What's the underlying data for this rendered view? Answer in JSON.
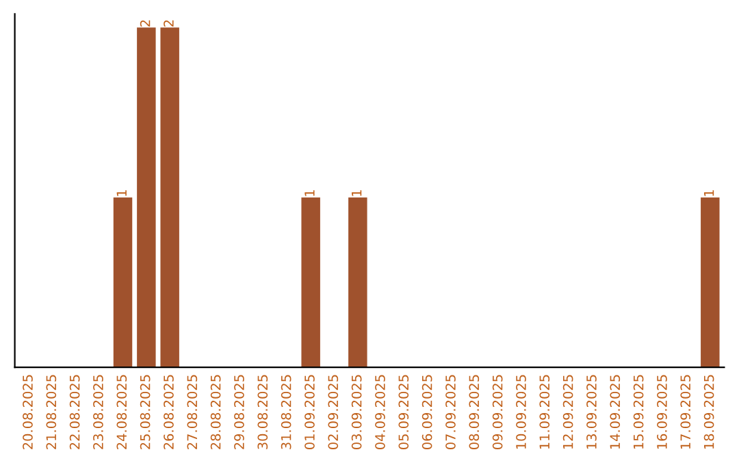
{
  "chart_data": {
    "type": "bar",
    "categories": [
      "20.08.2025",
      "21.08.2025",
      "22.08.2025",
      "23.08.2025",
      "24.08.2025",
      "25.08.2025",
      "26.08.2025",
      "27.08.2025",
      "28.08.2025",
      "29.08.2025",
      "30.08.2025",
      "31.08.2025",
      "01.09.2025",
      "02.09.2025",
      "03.09.2025",
      "04.09.2025",
      "05.09.2025",
      "06.09.2025",
      "07.09.2025",
      "08.09.2025",
      "09.09.2025",
      "10.09.2025",
      "11.09.2025",
      "12.09.2025",
      "13.09.2025",
      "14.09.2025",
      "15.09.2025",
      "16.09.2025",
      "17.09.2025",
      "18.09.2025"
    ],
    "values": [
      0,
      0,
      0,
      0,
      1,
      2,
      2,
      0,
      0,
      0,
      0,
      0,
      1,
      0,
      1,
      0,
      0,
      0,
      0,
      0,
      0,
      0,
      0,
      0,
      0,
      0,
      0,
      0,
      0,
      1
    ],
    "value_labels": [
      null,
      null,
      null,
      null,
      "1",
      "2",
      "2",
      null,
      null,
      null,
      null,
      null,
      "1",
      null,
      "1",
      null,
      null,
      null,
      null,
      null,
      null,
      null,
      null,
      null,
      null,
      null,
      null,
      null,
      null,
      "1"
    ],
    "color": "#a0522d",
    "tick_labels": "x",
    "grid": false,
    "legend": false
  }
}
